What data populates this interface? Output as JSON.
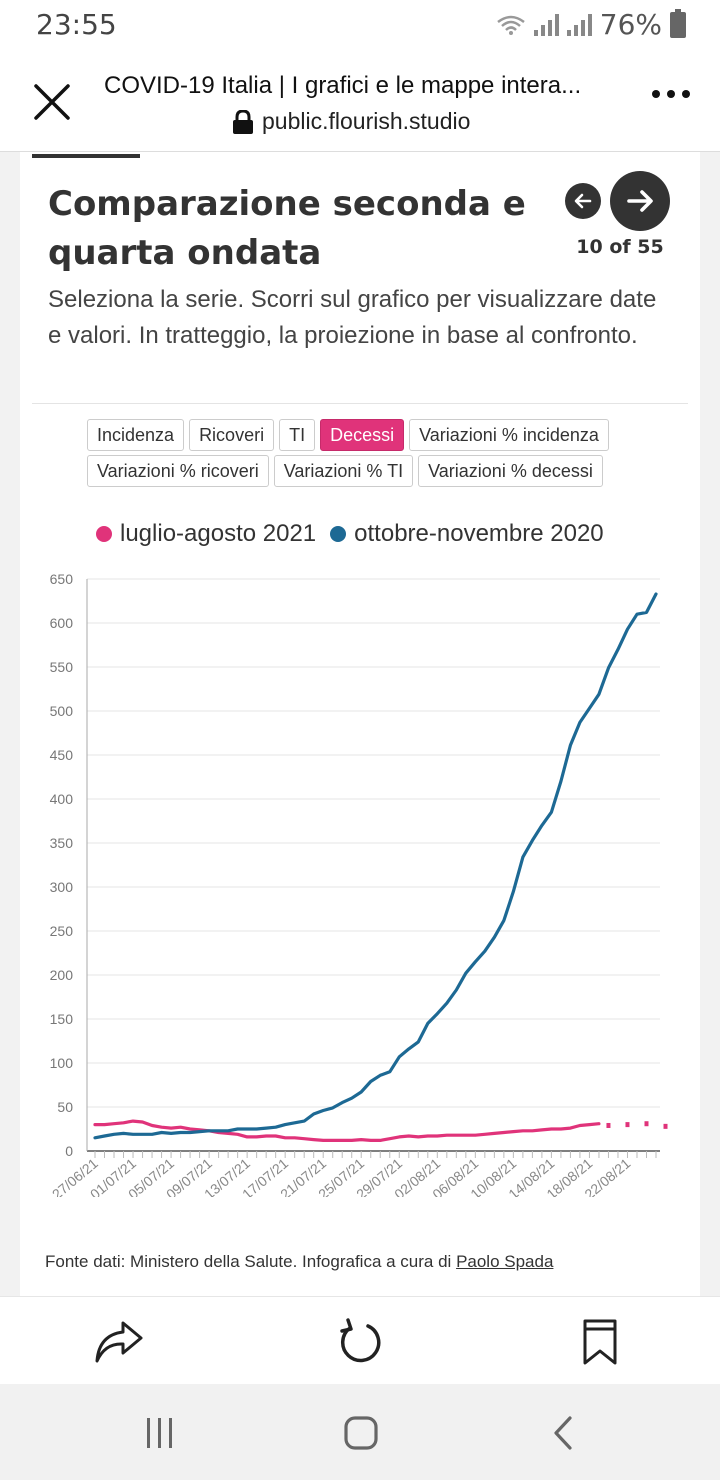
{
  "status_bar": {
    "time": "23:55",
    "battery": "76%",
    "icons": [
      "wifi-icon",
      "signal-icon",
      "signal-icon",
      "battery-icon"
    ]
  },
  "browser": {
    "title": "COVID-19 Italia | I grafici e le mappe intera...",
    "url": "public.flourish.studio",
    "icons": [
      "close-icon",
      "lock-icon",
      "more-icon"
    ]
  },
  "story": {
    "title": "Comparazione seconda e quarta ondata",
    "counter": "10 of 55",
    "subtitle": "Seleziona la serie. Scorri sul grafico per visualizzare date e valori. In tratteggio, la proiezione in base al confronto.",
    "buttons_row1": [
      "Incidenza",
      "Ricoveri",
      "TI",
      "Decessi",
      "Variazioni % incidenza"
    ],
    "buttons_row2": [
      "Variazioni % ricoveri",
      "Variazioni % TI",
      "Variazioni % decessi"
    ],
    "active_button": "Decessi",
    "footer_prefix": "Fonte dati: Ministero della Salute. Infografica a cura di ",
    "footer_link": "Paolo Spada"
  },
  "chart_data": {
    "type": "line",
    "ylim": [
      0,
      650
    ],
    "yticks": [
      0,
      50,
      100,
      150,
      200,
      250,
      300,
      350,
      400,
      450,
      500,
      550,
      600,
      650
    ],
    "xtick_labels": [
      "27/06/21",
      "01/07/21",
      "05/07/21",
      "09/07/21",
      "13/07/21",
      "17/07/21",
      "21/07/21",
      "25/07/21",
      "29/07/21",
      "02/08/21",
      "06/08/21",
      "10/08/21",
      "14/08/21",
      "18/08/21",
      "22/08/21"
    ],
    "legend": "top",
    "grid": true,
    "series": [
      {
        "name": "luglio-agosto 2021",
        "color": "#e0337a",
        "values": [
          30,
          30,
          31,
          32,
          34,
          33,
          29,
          27,
          26,
          27,
          25,
          24,
          23,
          21,
          20,
          19,
          16,
          16,
          17,
          17,
          15,
          15,
          14,
          13,
          12,
          12,
          12,
          12,
          13,
          12,
          12,
          14,
          16,
          17,
          16,
          17,
          17,
          18,
          18,
          18,
          18,
          19,
          20,
          21,
          22,
          23,
          23,
          24,
          25,
          25,
          26,
          29,
          30,
          31
        ],
        "projection": [
          29,
          29,
          30,
          32,
          31,
          31,
          28
        ]
      },
      {
        "name": "ottobre-novembre 2020",
        "color": "#1d6994",
        "values": [
          15,
          17,
          19,
          20,
          19,
          19,
          19,
          21,
          20,
          21,
          21,
          22,
          23,
          23,
          23,
          25,
          25,
          25,
          26,
          27,
          30,
          32,
          34,
          42,
          46,
          49,
          55,
          60,
          67,
          79,
          86,
          90,
          107,
          116,
          124,
          145,
          156,
          168,
          183,
          202,
          215,
          227,
          243,
          262,
          295,
          334,
          353,
          370,
          385,
          420,
          461,
          487,
          503,
          519,
          549,
          570,
          593,
          610,
          612,
          633
        ]
      }
    ]
  },
  "toolbar": {
    "icons": [
      "share-icon",
      "refresh-icon",
      "bookmark-icon"
    ]
  },
  "navbar": {
    "icons": [
      "recents-icon",
      "home-icon",
      "back-icon"
    ]
  }
}
